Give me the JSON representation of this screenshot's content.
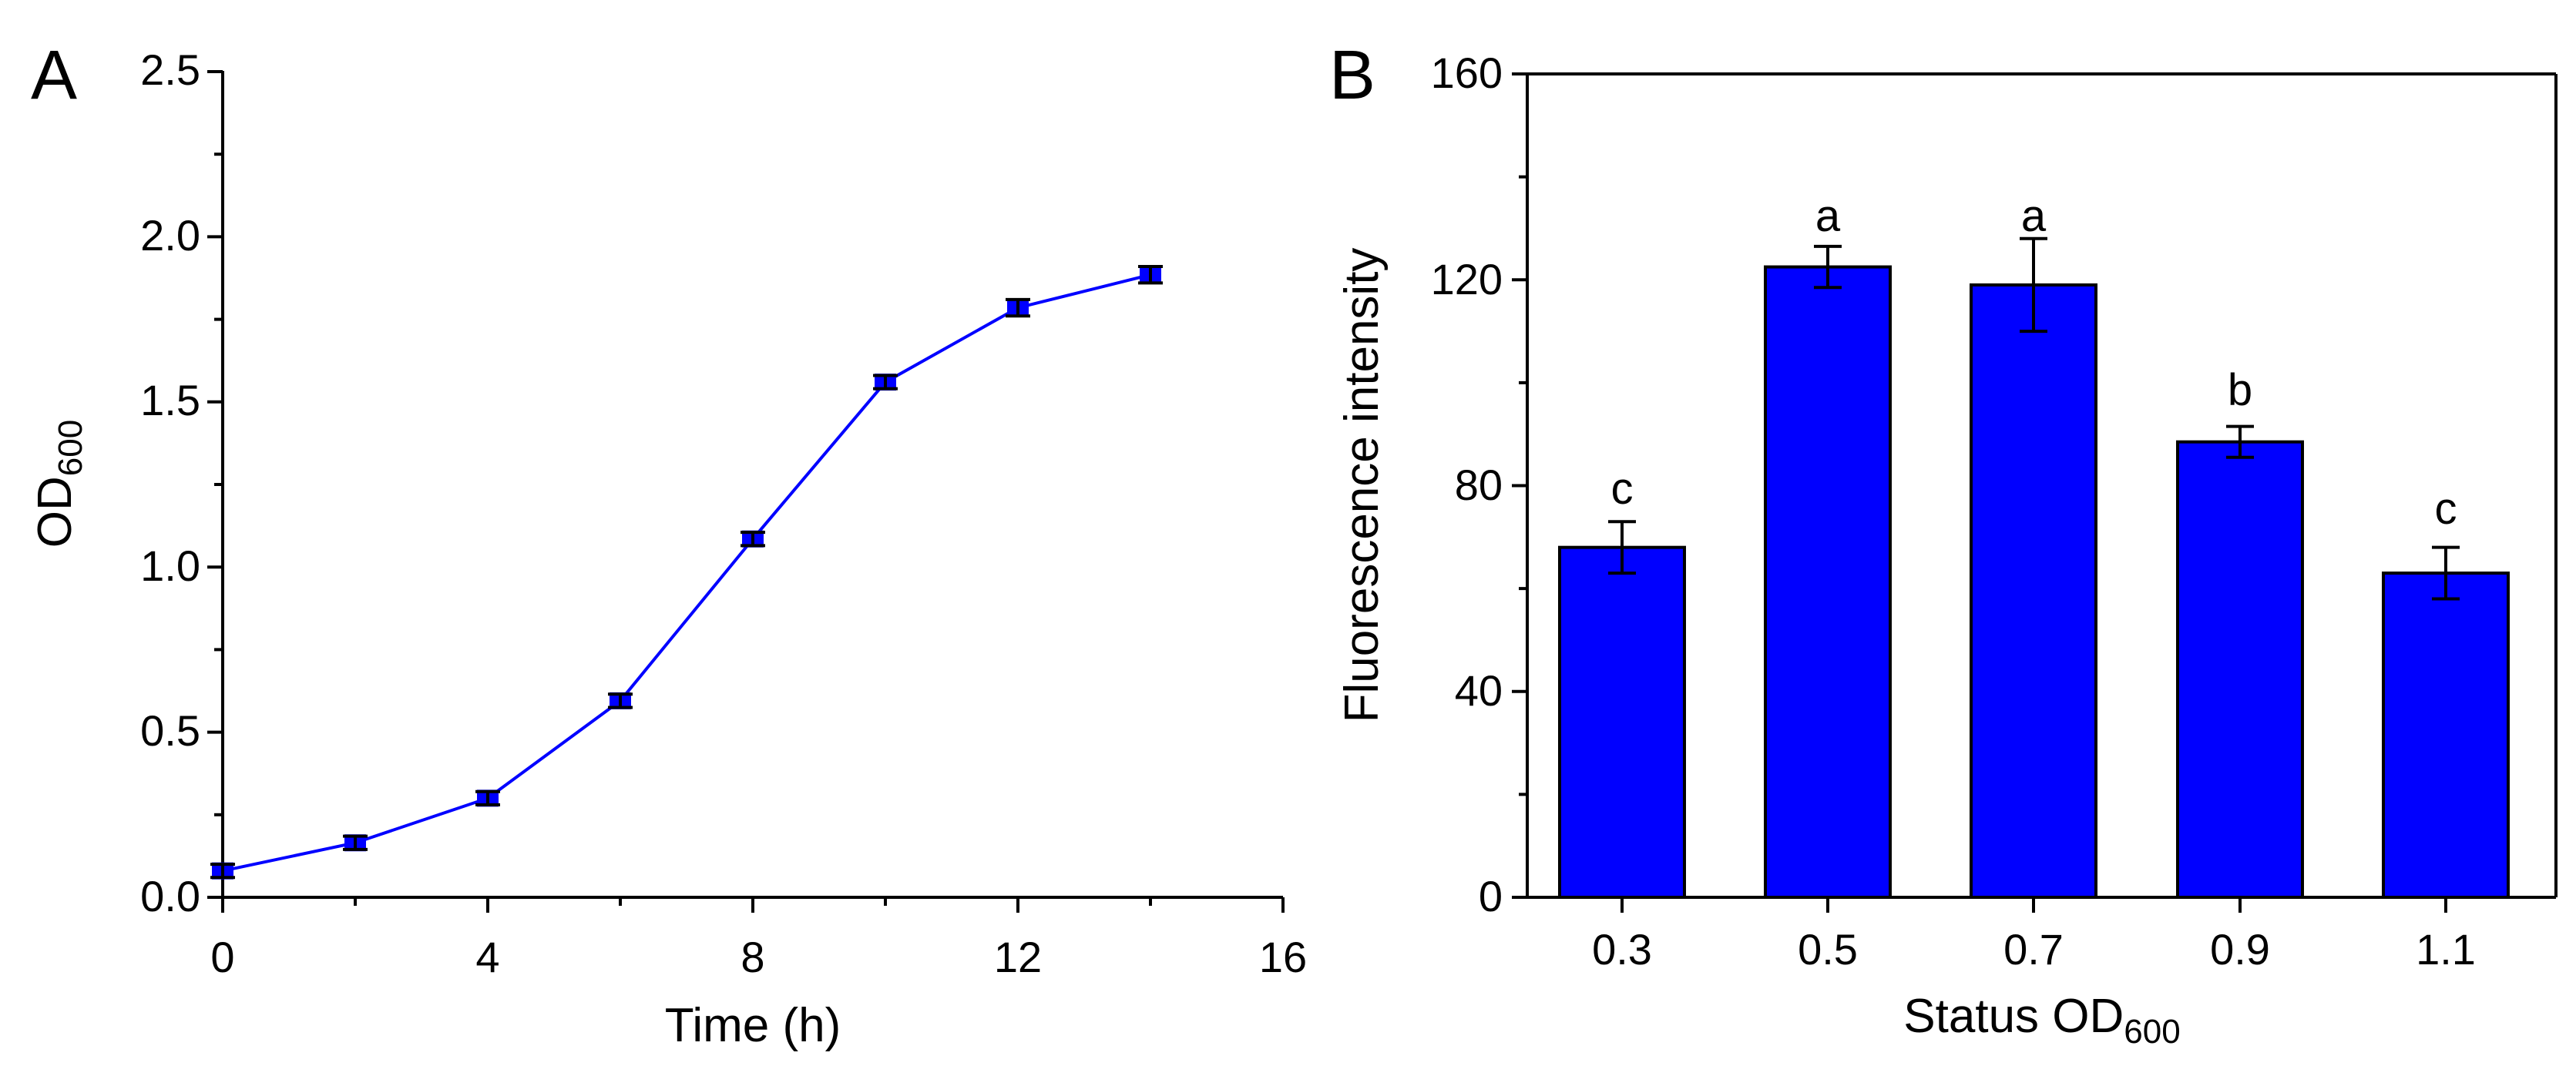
{
  "colors": {
    "series": "#0000ff",
    "axis": "#000000",
    "background": "#ffffff"
  },
  "chart_data": [
    {
      "panel_label": "A",
      "type": "line",
      "xlabel": "Time (h)",
      "ylabel": {
        "main": "OD",
        "sub": "600"
      },
      "xlim": [
        0,
        16
      ],
      "ylim": [
        0,
        2.5
      ],
      "x_ticks": [
        "0",
        "4",
        "8",
        "12",
        "16"
      ],
      "y_ticks": [
        "0.0",
        "0.5",
        "1.0",
        "1.5",
        "2.0",
        "2.5"
      ],
      "grid": false,
      "marker": "square",
      "x": [
        0,
        2,
        4,
        6,
        8,
        10,
        12,
        14
      ],
      "y": [
        0.08,
        0.165,
        0.3,
        0.595,
        1.085,
        1.56,
        1.785,
        1.885
      ],
      "error": [
        0.02,
        0.02,
        0.02,
        0.02,
        0.02,
        0.02,
        0.025,
        0.025
      ]
    },
    {
      "panel_label": "B",
      "type": "bar",
      "xlabel": {
        "main": "Status OD",
        "sub": "600"
      },
      "ylabel": "Fluorescence intensity",
      "ylim": [
        0,
        160
      ],
      "y_ticks": [
        "0",
        "40",
        "80",
        "120",
        "160"
      ],
      "grid": false,
      "categories": [
        "0.3",
        "0.5",
        "0.7",
        "0.9",
        "1.1"
      ],
      "values": [
        68,
        122.5,
        119,
        88.5,
        63
      ],
      "error": [
        5,
        4,
        9,
        3,
        5
      ],
      "annotations": [
        "c",
        "a",
        "a",
        "b",
        "c"
      ]
    }
  ]
}
